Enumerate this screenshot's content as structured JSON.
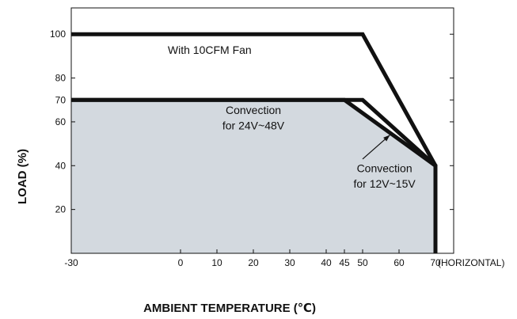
{
  "chart_data": {
    "type": "line",
    "xlabel": "AMBIENT TEMPERATURE (℃)",
    "ylabel": "LOAD (%)",
    "x_unit_note": "(HORIZONTAL)",
    "xlim": [
      -30,
      75
    ],
    "ylim": [
      0,
      112
    ],
    "x_ticks": [
      -30,
      0,
      10,
      20,
      30,
      40,
      45,
      50,
      60,
      70
    ],
    "y_ticks": [
      20,
      40,
      60,
      70,
      80,
      100
    ],
    "grid": false,
    "series": [
      {
        "x": [
          -30,
          50,
          70,
          70
        ],
        "y": [
          100,
          100,
          40,
          0
        ],
        "color": "#111111"
      },
      {
        "x": [
          -30,
          50,
          70
        ],
        "y": [
          70,
          70,
          40
        ],
        "color": "#111111"
      },
      {
        "x": [
          -30,
          45,
          70,
          70
        ],
        "y": [
          70,
          70,
          40,
          0
        ],
        "color": "#111111",
        "fill": "#d3d9df"
      }
    ],
    "annotations": [
      {
        "text": "With 10CFM Fan",
        "x": 8,
        "y": 91
      },
      {
        "text": "Convection",
        "x": 20,
        "y": 63.5
      },
      {
        "text": "for 24V~48V",
        "x": 20,
        "y": 56.5
      },
      {
        "text": "Convection",
        "x": 56,
        "y": 37
      },
      {
        "text": "for 12V~15V",
        "x": 56,
        "y": 30
      }
    ],
    "arrow": {
      "from": [
        50,
        43
      ],
      "to": [
        57.5,
        54
      ]
    }
  }
}
